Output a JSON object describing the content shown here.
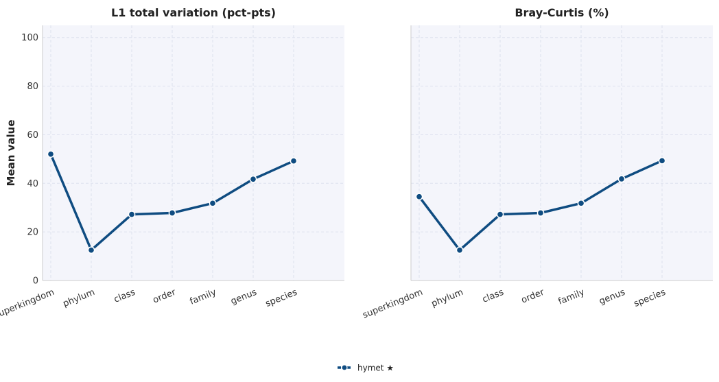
{
  "chart_data": {
    "type": "line",
    "ylabel": "Mean value",
    "ylim": [
      0,
      105
    ],
    "yticks": [
      0,
      20,
      40,
      60,
      80,
      100
    ],
    "categories": [
      "superkingdom",
      "phylum",
      "class",
      "order",
      "family",
      "genus",
      "species"
    ],
    "grid": true,
    "legend_position": "bottom-center",
    "colors": {
      "series": "#0f4c81",
      "panel_bg": "#f4f5fb",
      "grid": "#dde1ee",
      "axis": "#cccccc"
    },
    "panels": [
      {
        "title": "L1 total variation (pct-pts)",
        "series": [
          {
            "name": "hymet ★",
            "values": [
              52.0,
              12.5,
              27.2,
              27.8,
              31.8,
              41.7,
              49.2
            ]
          }
        ]
      },
      {
        "title": "Bray-Curtis (%)",
        "series": [
          {
            "name": "hymet ★",
            "values": [
              34.5,
              12.5,
              27.2,
              27.8,
              31.8,
              41.8,
              49.3
            ]
          }
        ]
      }
    ],
    "legend": [
      {
        "label": "hymet ★"
      }
    ]
  }
}
